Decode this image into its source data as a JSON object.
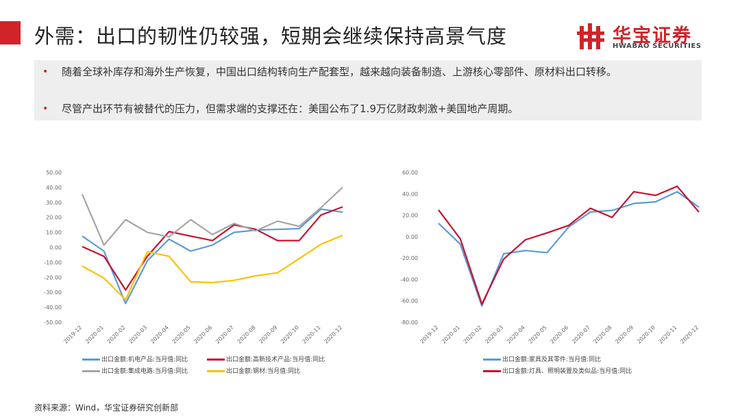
{
  "header": {
    "title": "外需：出口的韧性仍较强，短期会继续保持高景气度",
    "accent_color": "#d1232a",
    "logo_cn": "华宝证券",
    "logo_en": "HWABAO SECURITIES"
  },
  "bullets": [
    {
      "marker": "•",
      "text": "随着全球补库存和海外生产恢复，中国出口结构转向生产配套型，越来越向装备制造、上游核心零部件、原材料出口转移。"
    },
    {
      "marker": "•",
      "text": "尽管产出环节有被替代的压力，但需求端的支撑还在：美国公布了1.9万亿财政刺激+美国地产周期。"
    }
  ],
  "chart_data": [
    {
      "type": "line",
      "categories": [
        "2019-12",
        "2020-01",
        "2020-02",
        "2020-03",
        "2020-04",
        "2020-05",
        "2020-06",
        "2020-07",
        "2020-08",
        "2020-09",
        "2020-10",
        "2020-11",
        "2020-12"
      ],
      "ylim": [
        -50,
        50
      ],
      "yticks": [
        "50.00",
        "40.00",
        "30.00",
        "20.00",
        "10.00",
        "0.00",
        "-10.00",
        "-20.00",
        "-30.00",
        "-40.00",
        "-50.00"
      ],
      "series": [
        {
          "name": "出口金额:机电产品:当月值:同比",
          "color": "#5b9bd5",
          "values": [
            7.5,
            -2.5,
            -37.5,
            -9,
            5.5,
            -2.5,
            1.5,
            10,
            11.5,
            12,
            12.5,
            25.5,
            23.5
          ]
        },
        {
          "name": "出口金额:高新技术产品:当月值:同比",
          "color": "#c8102e",
          "values": [
            0.5,
            -6,
            -28.5,
            -6,
            10.5,
            7.5,
            4.5,
            15,
            12,
            4.5,
            4.5,
            21.5,
            27
          ]
        },
        {
          "name": "出口金额:集成电路:当月值:同比",
          "color": "#a5a5a5",
          "values": [
            35.5,
            1.5,
            18.5,
            10,
            7,
            18.5,
            8.5,
            16,
            11,
            17.5,
            14,
            26.5,
            40
          ]
        },
        {
          "name": "出口金额:钢材:当月值:同比",
          "color": "#ffc000",
          "values": [
            -12.5,
            -20.5,
            -35,
            -3,
            -6,
            -23,
            -23.5,
            -22,
            -19,
            -17,
            -7.5,
            2,
            8
          ]
        }
      ]
    },
    {
      "type": "line",
      "categories": [
        "2019-12",
        "2020-01",
        "2020-02",
        "2020-03",
        "2020-04",
        "2020-05",
        "2020-06",
        "2020-07",
        "2020-08",
        "2020-09",
        "2020-10",
        "2020-11",
        "2020-12"
      ],
      "ylim": [
        -80,
        60
      ],
      "yticks": [
        "60.00",
        "40.00",
        "20.00",
        "0.00",
        "-20.00",
        "-40.00",
        "-60.00",
        "-80.00"
      ],
      "series": [
        {
          "name": "出口金额:家具及其零件:当月值:同比",
          "color": "#5b9bd5",
          "values": [
            12.5,
            -7,
            -65,
            -16,
            -13,
            -15,
            9,
            23,
            24.5,
            31,
            32.5,
            42,
            27.5
          ]
        },
        {
          "name": "出口金额:灯具、照明装置及类似品:当月值:同比",
          "color": "#c8102e",
          "values": [
            25,
            -2,
            -63,
            -21,
            -3,
            3.5,
            10.5,
            26.5,
            18,
            42,
            38.5,
            47,
            23
          ]
        }
      ]
    }
  ],
  "footer": {
    "source": "资料来源：Wind，华宝证券研究创新部"
  }
}
